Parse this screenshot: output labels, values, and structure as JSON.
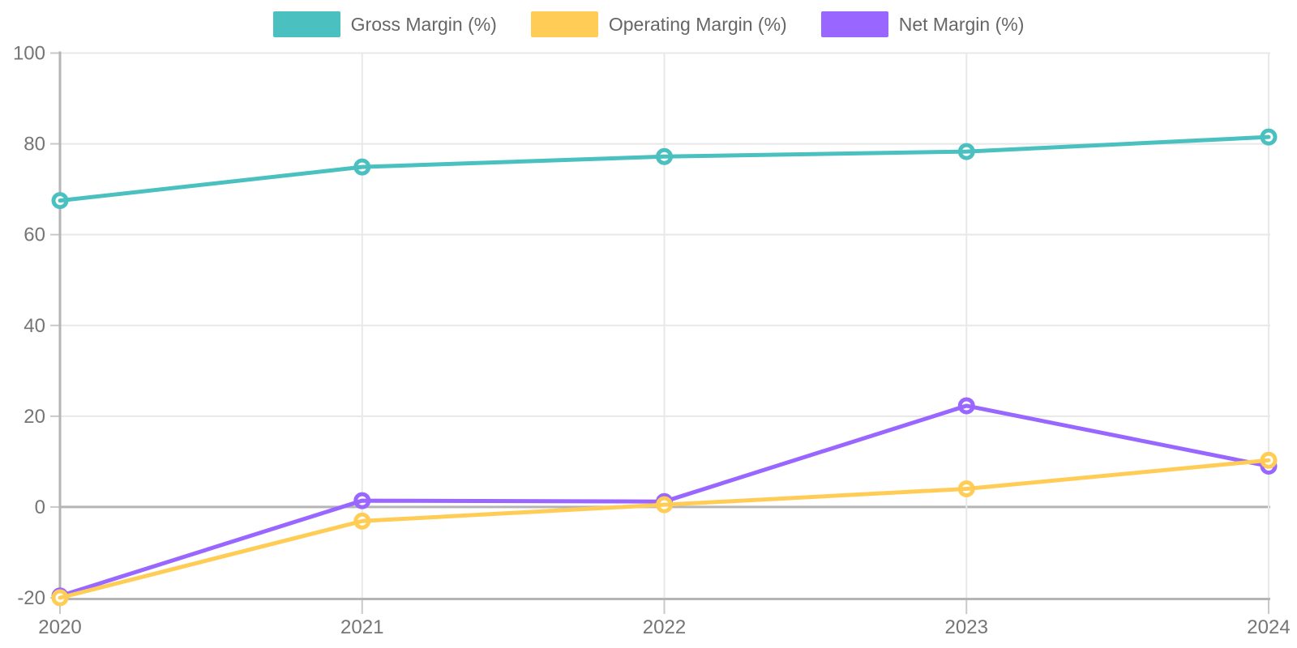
{
  "chart_data": {
    "type": "line",
    "title": "",
    "x": [
      "2020",
      "2021",
      "2022",
      "2023",
      "2024"
    ],
    "series": [
      {
        "name": "Gross Margin (%)",
        "color": "#4bc0c0",
        "values": [
          67.5,
          74.9,
          77.2,
          78.3,
          81.5
        ]
      },
      {
        "name": "Operating Margin (%)",
        "color": "#ffcd56",
        "values": [
          -20.0,
          -3.1,
          0.5,
          4.0,
          10.3
        ]
      },
      {
        "name": "Net Margin (%)",
        "color": "#9966ff",
        "values": [
          -19.6,
          1.4,
          1.2,
          22.3,
          9.0
        ]
      }
    ],
    "xlabel": "",
    "ylabel": "",
    "y_ticks": [
      100,
      80,
      60,
      40,
      20,
      0,
      -20
    ],
    "ylim": [
      -20,
      100
    ],
    "grid": true,
    "zero_line_emphasized": true,
    "legend_position": "top-center",
    "point_style": "white-filled-circle-with-colored-ring",
    "colors": {
      "grid_line": "#e8e8e8",
      "axis_line": "#b5b5b5",
      "tick_mark": "#c9c9c9",
      "tick_text": "#757575",
      "legend_text": "#666666",
      "background": "#ffffff"
    }
  }
}
